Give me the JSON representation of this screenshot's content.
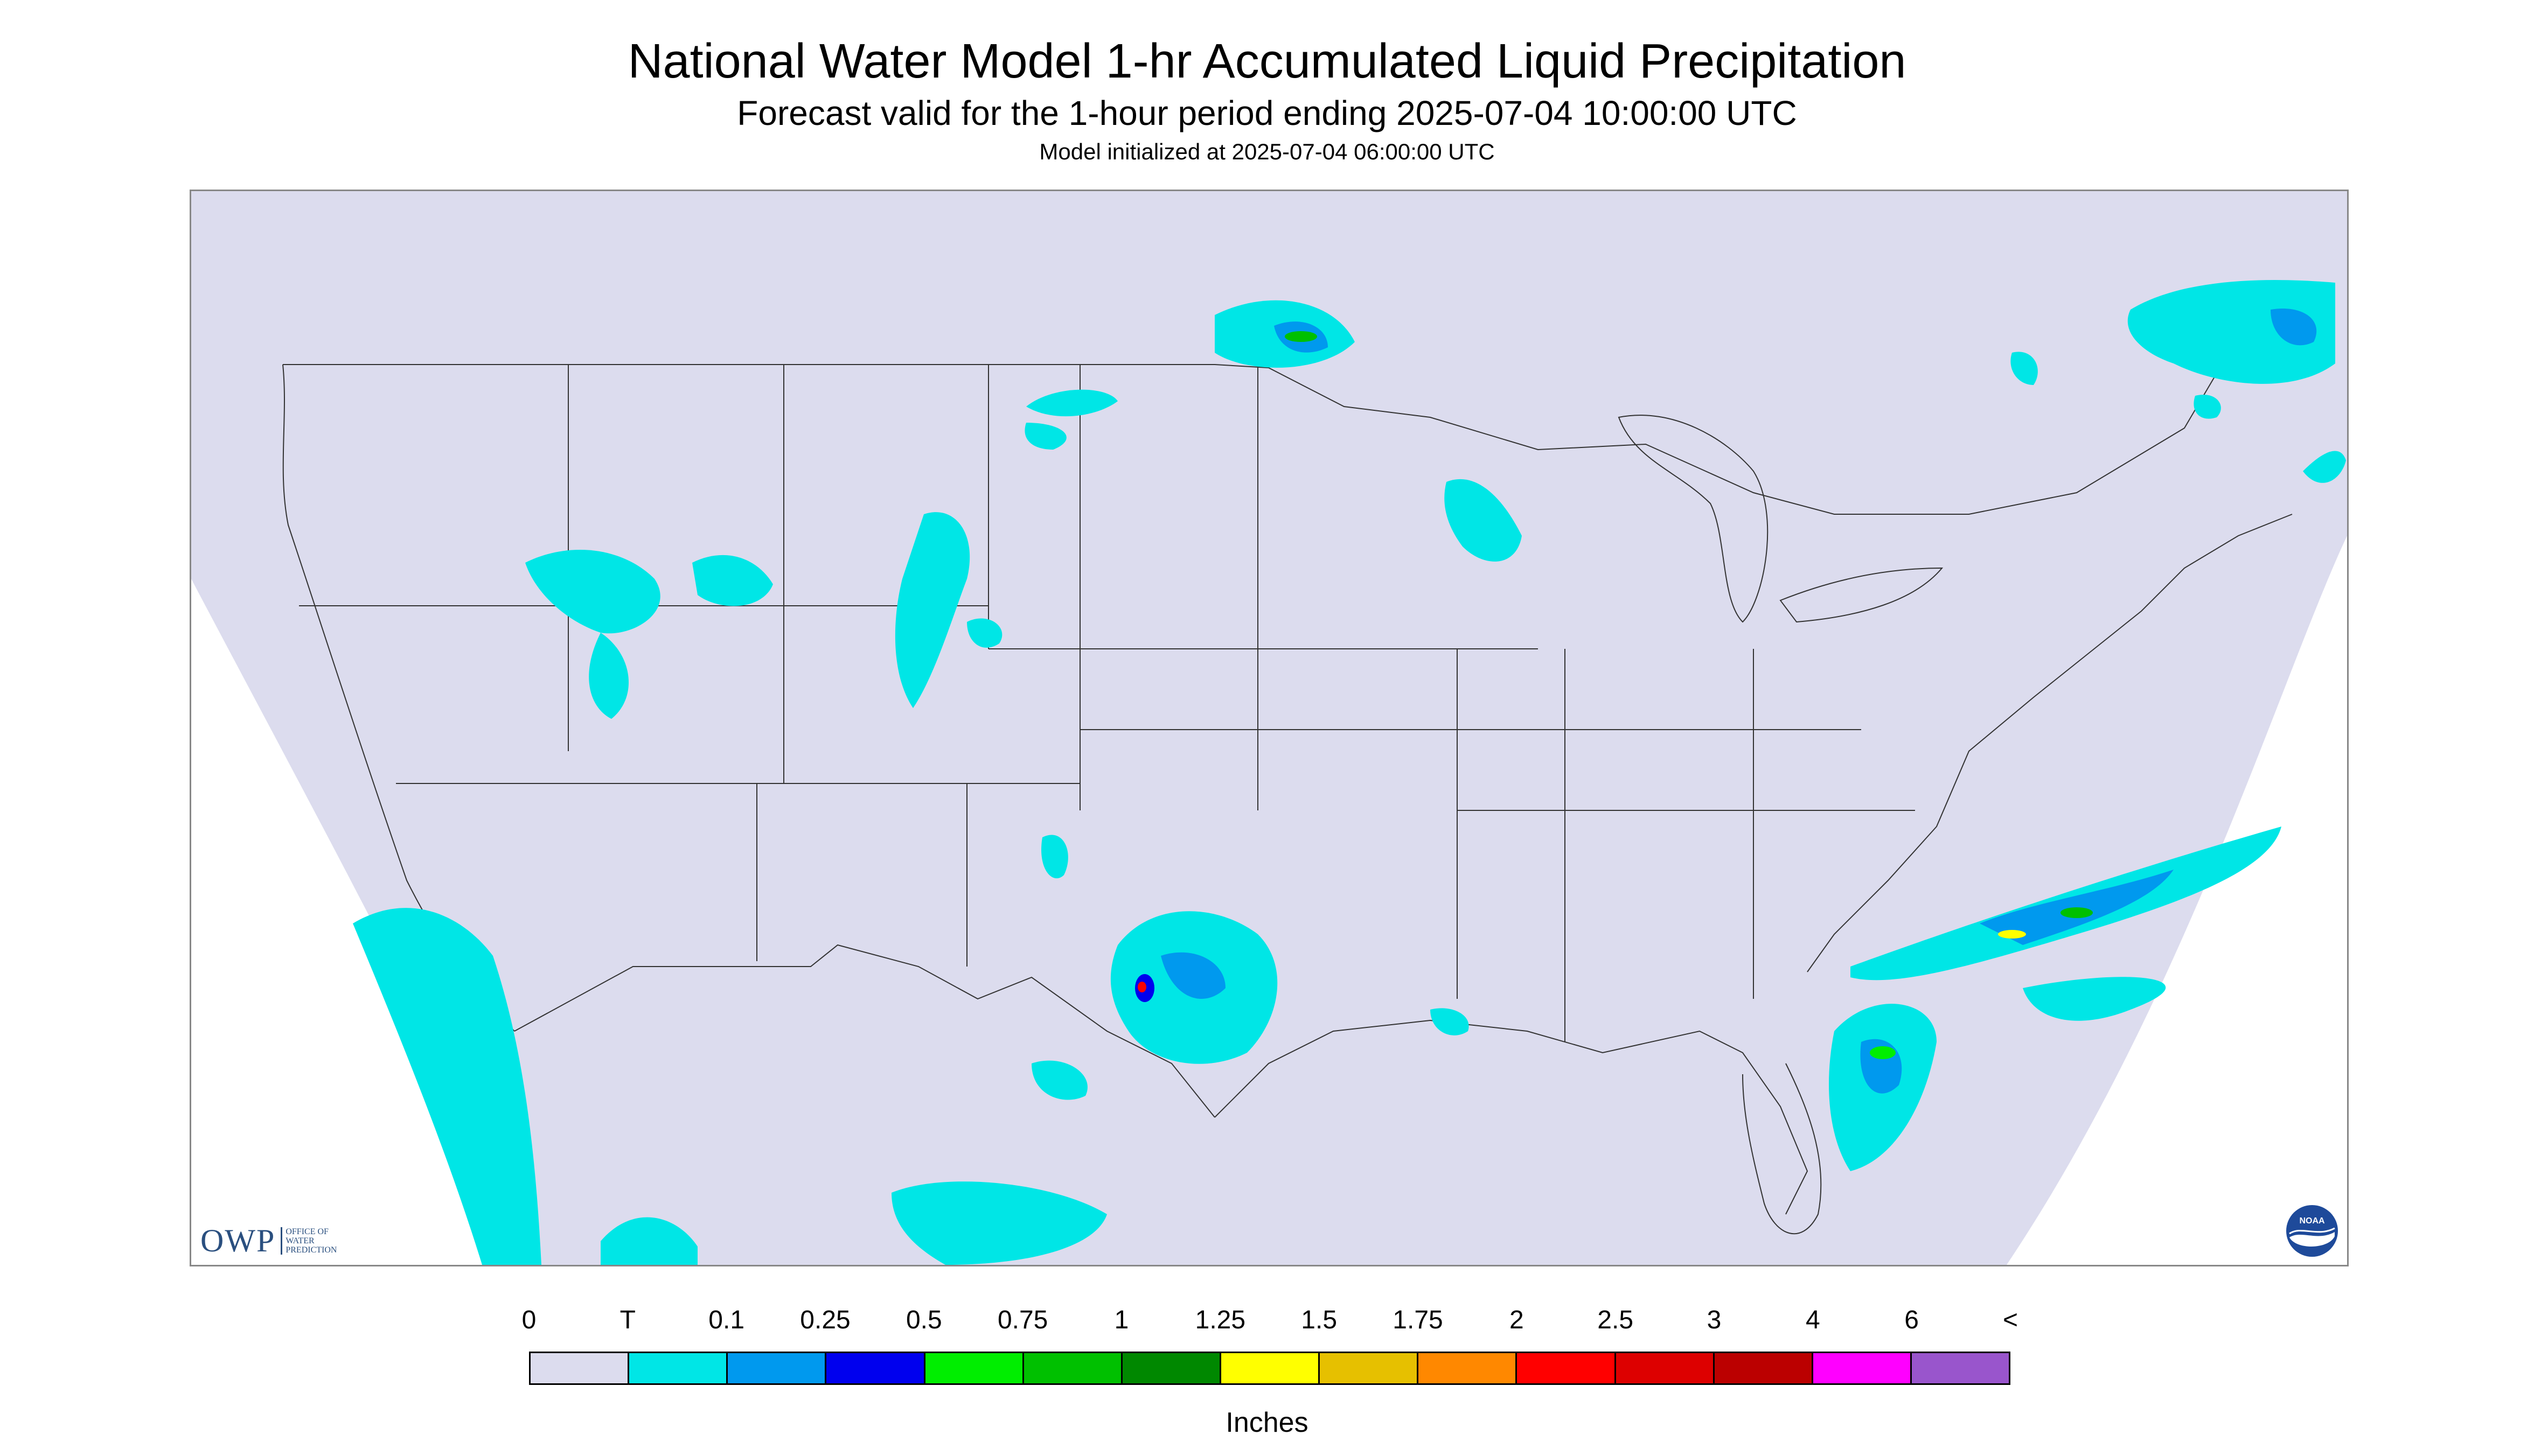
{
  "title": "National Water Model 1-hr Accumulated Liquid Precipitation",
  "subtitle": "Forecast valid for the 1-hour period ending 2025-07-04 10:00:00 UTC",
  "init_text": "Model initialized at 2025-07-04 06:00:00 UTC",
  "logos": {
    "owp_text": "OWP",
    "owp_sub": [
      "OFFICE OF",
      "WATER",
      "PREDICTION"
    ],
    "noaa_text": "NOAA"
  },
  "legend": {
    "tick_labels": [
      "0",
      "T",
      "0.1",
      "0.25",
      "0.5",
      "0.75",
      "1",
      "1.25",
      "1.5",
      "1.75",
      "2",
      "2.5",
      "3",
      "4",
      "6",
      "<"
    ],
    "colors": [
      "#dcdcee",
      "#00e6e6",
      "#0099ee",
      "#0000ee",
      "#00ee00",
      "#00c000",
      "#008800",
      "#ffff00",
      "#e6c000",
      "#ff8800",
      "#ff0000",
      "#dd0000",
      "#bb0000",
      "#ff00ff",
      "#9955cc"
    ],
    "units": "Inches"
  },
  "colors": {
    "land_background": "#dcdcee",
    "frame": "#888888"
  }
}
